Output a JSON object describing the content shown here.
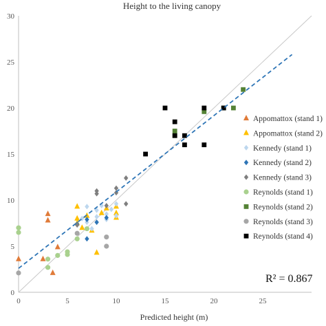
{
  "chart_data": {
    "type": "scatter",
    "title": "Height to the living canopy",
    "xlabel": "Predicted height (m)",
    "ylabel": "",
    "xlim": [
      0,
      30
    ],
    "ylim": [
      0,
      30
    ],
    "x_ticks": [
      "0",
      "5",
      "10",
      "15",
      "20",
      "25"
    ],
    "y_ticks": [
      "0",
      "5",
      "10",
      "15",
      "20",
      "25",
      "30"
    ],
    "grid": false,
    "legend_position": "right",
    "annotation": "R² = 0.867",
    "reference_line": {
      "style": "solid",
      "color": "#c8c8c8",
      "points": [
        [
          0,
          0
        ],
        [
          30,
          30
        ]
      ]
    },
    "fit_line": {
      "style": "dashed",
      "color": "#2e75b6",
      "points": [
        [
          0,
          2.6
        ],
        [
          28,
          25.8
        ]
      ]
    },
    "series": [
      {
        "name": "Appomattox (stand 1)",
        "marker": "triangle",
        "color": "#e07b39",
        "points": [
          [
            0,
            3.6
          ],
          [
            2.5,
            3.6
          ],
          [
            3,
            8.5
          ],
          [
            3,
            7.8
          ],
          [
            3.5,
            2.1
          ],
          [
            4,
            4.9
          ]
        ]
      },
      {
        "name": "Appomattox (stand 2)",
        "marker": "triangle",
        "color": "#ffc000",
        "points": [
          [
            6,
            9.3
          ],
          [
            6,
            8.0
          ],
          [
            6,
            7.5
          ],
          [
            6.5,
            7.0
          ],
          [
            7,
            8.3
          ],
          [
            7.5,
            6.7
          ],
          [
            8,
            4.3
          ],
          [
            8.5,
            8.6
          ],
          [
            9,
            9.1
          ],
          [
            10,
            8.1
          ],
          [
            10,
            8.6
          ],
          [
            10,
            9.3
          ]
        ]
      },
      {
        "name": "Kennedy (stand 1)",
        "marker": "diamond",
        "color": "#bdd7ee",
        "points": [
          [
            6.5,
            8.0
          ],
          [
            7,
            9.3
          ],
          [
            7,
            7.6
          ],
          [
            8,
            8.9
          ],
          [
            8,
            8.2
          ],
          [
            8.5,
            9.4
          ],
          [
            9,
            8.5
          ],
          [
            9,
            7.9
          ],
          [
            9.5,
            9.0
          ],
          [
            10,
            9.6
          ],
          [
            10,
            8.3
          ],
          [
            7.5,
            6.9
          ]
        ]
      },
      {
        "name": "Kennedy (stand 2)",
        "marker": "diamond",
        "color": "#2e75b6",
        "points": [
          [
            6,
            7.4
          ],
          [
            7,
            7.9
          ],
          [
            7,
            5.8
          ],
          [
            8,
            7.6
          ],
          [
            9,
            8.1
          ]
        ]
      },
      {
        "name": "Kennedy (stand 3)",
        "marker": "diamond",
        "color": "#7f7f7f",
        "points": [
          [
            6,
            7.3
          ],
          [
            8,
            11.0
          ],
          [
            8,
            10.7
          ],
          [
            9,
            9.4
          ],
          [
            10,
            11.3
          ],
          [
            10,
            10.8
          ],
          [
            11,
            12.4
          ],
          [
            11,
            9.6
          ]
        ]
      },
      {
        "name": "Reynolds (stand 1)",
        "marker": "circle",
        "color": "#a9d18e",
        "points": [
          [
            0,
            7.0
          ],
          [
            0,
            6.5
          ],
          [
            3,
            3.6
          ],
          [
            3,
            2.7
          ],
          [
            4,
            4.0
          ],
          [
            5,
            4.4
          ],
          [
            5,
            4.1
          ],
          [
            6,
            5.8
          ],
          [
            7,
            6.9
          ]
        ]
      },
      {
        "name": "Reynolds (stand 2)",
        "marker": "square",
        "color": "#548235",
        "points": [
          [
            16,
            17.5
          ],
          [
            16,
            17.0
          ],
          [
            19,
            19.6
          ],
          [
            21,
            20.0
          ],
          [
            22,
            20.0
          ],
          [
            23,
            22.0
          ]
        ]
      },
      {
        "name": "Reynolds (stand 3)",
        "marker": "circle",
        "color": "#a6a6a6",
        "points": [
          [
            0,
            2.1
          ],
          [
            9,
            6.0
          ],
          [
            9,
            5.0
          ],
          [
            6,
            6.4
          ]
        ]
      },
      {
        "name": "Reynolds (stand 4)",
        "marker": "square",
        "color": "#000000",
        "points": [
          [
            13,
            15.0
          ],
          [
            15,
            20.0
          ],
          [
            16,
            18.5
          ],
          [
            16,
            17.0
          ],
          [
            17,
            17.0
          ],
          [
            17,
            16.0
          ],
          [
            19,
            20.0
          ],
          [
            19,
            16.0
          ],
          [
            21,
            20.0
          ]
        ]
      }
    ]
  }
}
